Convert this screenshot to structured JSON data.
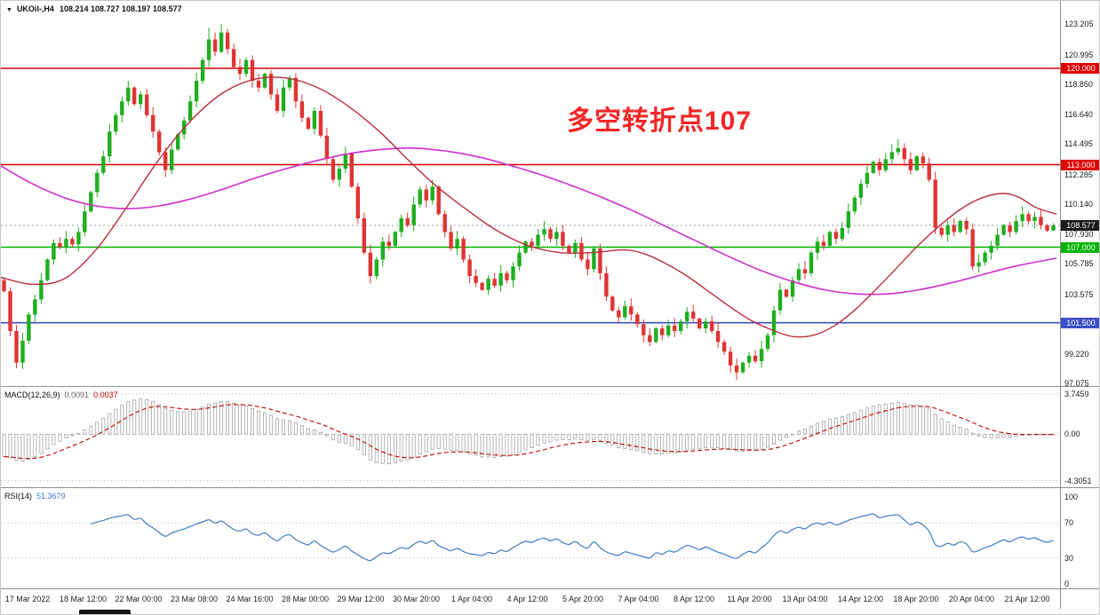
{
  "header": {
    "collapse_icon": "▼",
    "symbol_period": "UKOil-,H4",
    "ohlc_text": "108.214 108.727 108.197 108.577"
  },
  "annotation": {
    "text": "多空转折点107",
    "color": "#f42525"
  },
  "colors": {
    "candle_up": "#1fae1f",
    "candle_down": "#e03434",
    "ma_fast": "#b8303e",
    "ma_slow": "#cc2fcc",
    "macd_signal": "#c00000",
    "macd_bar": "#a6a6a6",
    "rsi_line": "#3b7cc4",
    "current_price_badge": "#1a1a1a",
    "grid_dotted": "#bbbbbb"
  },
  "chart_data": {
    "type": "candlestick",
    "symbol": "UKOil-",
    "timeframe": "H4",
    "ohlc_display": {
      "open": "108.214",
      "high": "108.727",
      "low": "108.197",
      "close": "108.577"
    },
    "ylim": [
      96.9,
      124.9
    ],
    "first_open": 104.6,
    "closes": [
      103.8,
      100.9,
      98.6,
      100.2,
      102.1,
      103.2,
      104.6,
      106.1,
      107.3,
      107.0,
      107.6,
      107.2,
      108.1,
      109.6,
      111.0,
      112.4,
      113.6,
      115.4,
      116.6,
      117.6,
      118.6,
      117.4,
      118.1,
      116.6,
      115.4,
      113.9,
      112.6,
      114.1,
      115.2,
      116.2,
      117.6,
      119.1,
      120.6,
      122.1,
      121.2,
      122.6,
      121.4,
      120.1,
      119.6,
      120.6,
      119.1,
      118.6,
      119.6,
      118.1,
      116.9,
      118.6,
      119.3,
      117.6,
      116.4,
      115.6,
      116.9,
      115.1,
      113.4,
      111.9,
      112.7,
      113.8,
      111.4,
      109.1,
      106.6,
      104.9,
      106.1,
      107.4,
      107.1,
      108.1,
      109.1,
      108.6,
      110.1,
      111.2,
      110.4,
      111.4,
      109.4,
      108.1,
      106.9,
      107.6,
      106.1,
      104.9,
      104.4,
      103.9,
      104.7,
      104.2,
      105.1,
      104.6,
      105.6,
      106.6,
      107.4,
      107.1,
      107.9,
      108.3,
      107.6,
      108.1,
      107.1,
      106.6,
      107.3,
      106.1,
      105.4,
      106.9,
      105.1,
      103.4,
      102.4,
      101.9,
      102.7,
      102.1,
      101.4,
      100.6,
      100.1,
      101.1,
      100.6,
      101.3,
      100.9,
      101.6,
      102.3,
      101.8,
      101.1,
      101.6,
      100.9,
      100.1,
      99.4,
      98.4,
      97.9,
      98.6,
      99.1,
      98.7,
      99.6,
      100.6,
      102.4,
      103.9,
      103.4,
      104.6,
      105.4,
      105.1,
      106.6,
      107.4,
      107.1,
      108.1,
      107.6,
      108.4,
      109.6,
      110.6,
      111.6,
      112.4,
      113.2,
      112.6,
      113.4,
      113.9,
      114.2,
      113.4,
      112.6,
      113.6,
      113.1,
      111.9,
      108.4,
      107.9,
      108.6,
      108.1,
      108.9,
      108.3,
      105.6,
      105.9,
      106.6,
      107.1,
      107.9,
      108.6,
      108.1,
      108.9,
      109.4,
      108.9,
      109.2,
      108.6,
      108.2,
      108.577
    ],
    "high_overrides": {
      "33": 122.95,
      "35": 123.21,
      "144": 114.85,
      "169": 108.73
    },
    "low_overrides": {
      "2": 98.2,
      "59": 104.35,
      "118": 97.35,
      "156": 105.32,
      "169": 108.2
    },
    "price_axis_labels": [
      "123.205",
      "120.995",
      "118.850",
      "116.640",
      "114.495",
      "112.285",
      "110.140",
      "107.930",
      "105.785",
      "103.575",
      "99.220",
      "97.075"
    ],
    "hlines": [
      {
        "price": 120.0,
        "label": "120.000",
        "color": "#e00000"
      },
      {
        "price": 113.0,
        "label": "113.000",
        "color": "#e00000"
      },
      {
        "price": 107.0,
        "label": "107.000",
        "color": "#00b400"
      },
      {
        "price": 101.5,
        "label": "101.500",
        "color": "#3c50c8"
      }
    ],
    "current_price": {
      "value": 108.577,
      "label": "108.577"
    },
    "ma_fast": {
      "points": [
        [
          0,
          104.8
        ],
        [
          0.03,
          104.3
        ],
        [
          0.06,
          104.7
        ],
        [
          0.09,
          106.8
        ],
        [
          0.12,
          110.0
        ],
        [
          0.15,
          113.4
        ],
        [
          0.18,
          116.2
        ],
        [
          0.21,
          118.2
        ],
        [
          0.24,
          119.2
        ],
        [
          0.27,
          119.3
        ],
        [
          0.3,
          118.6
        ],
        [
          0.33,
          117.2
        ],
        [
          0.36,
          115.3
        ],
        [
          0.385,
          113.4
        ],
        [
          0.41,
          111.6
        ],
        [
          0.44,
          109.8
        ],
        [
          0.47,
          108.2
        ],
        [
          0.5,
          107.1
        ],
        [
          0.53,
          106.6
        ],
        [
          0.56,
          106.6
        ],
        [
          0.59,
          106.8
        ],
        [
          0.61,
          106.5
        ],
        [
          0.63,
          105.8
        ],
        [
          0.65,
          104.9
        ],
        [
          0.67,
          103.8
        ],
        [
          0.69,
          102.7
        ],
        [
          0.71,
          101.7
        ],
        [
          0.73,
          101.0
        ],
        [
          0.75,
          100.5
        ],
        [
          0.77,
          100.6
        ],
        [
          0.79,
          101.3
        ],
        [
          0.81,
          102.5
        ],
        [
          0.83,
          104.0
        ],
        [
          0.85,
          105.6
        ],
        [
          0.87,
          107.2
        ],
        [
          0.89,
          108.6
        ],
        [
          0.91,
          109.8
        ],
        [
          0.93,
          110.6
        ],
        [
          0.95,
          110.9
        ],
        [
          0.965,
          110.6
        ],
        [
          0.98,
          109.9
        ],
        [
          1.0,
          109.4
        ]
      ]
    },
    "ma_slow": {
      "points": [
        [
          0,
          112.9
        ],
        [
          0.03,
          111.6
        ],
        [
          0.06,
          110.6
        ],
        [
          0.09,
          110.0
        ],
        [
          0.12,
          109.8
        ],
        [
          0.15,
          110.0
        ],
        [
          0.18,
          110.5
        ],
        [
          0.21,
          111.2
        ],
        [
          0.24,
          112.0
        ],
        [
          0.27,
          112.7
        ],
        [
          0.3,
          113.3
        ],
        [
          0.33,
          113.8
        ],
        [
          0.36,
          114.1
        ],
        [
          0.39,
          114.2
        ],
        [
          0.42,
          114.0
        ],
        [
          0.45,
          113.6
        ],
        [
          0.48,
          113.0
        ],
        [
          0.51,
          112.3
        ],
        [
          0.54,
          111.5
        ],
        [
          0.57,
          110.6
        ],
        [
          0.6,
          109.6
        ],
        [
          0.63,
          108.5
        ],
        [
          0.66,
          107.4
        ],
        [
          0.69,
          106.3
        ],
        [
          0.72,
          105.3
        ],
        [
          0.75,
          104.5
        ],
        [
          0.78,
          103.9
        ],
        [
          0.81,
          103.6
        ],
        [
          0.84,
          103.6
        ],
        [
          0.87,
          103.9
        ],
        [
          0.9,
          104.4
        ],
        [
          0.93,
          105.0
        ],
        [
          0.96,
          105.6
        ],
        [
          1.0,
          106.2
        ]
      ]
    },
    "macd": {
      "label": "MACD(12,26,9)",
      "value_main": "0.0091",
      "value_signal": "0.0037",
      "fast": 12,
      "slow": 26,
      "signal": 9,
      "ylim": [
        -4.9,
        4.3
      ],
      "level_labels": [
        "3.7459",
        "0.00",
        "-4.3051"
      ],
      "levels": [
        3.7459,
        0.0,
        -4.3051
      ]
    },
    "rsi": {
      "label": "RSI(14)",
      "value": "51.3679",
      "period": 14,
      "level_labels": [
        "100",
        "70",
        "30",
        "0"
      ],
      "levels": [
        100,
        70,
        30,
        0
      ],
      "levels_with_lines": [
        70,
        30
      ]
    },
    "time_labels": [
      "17 Mar 2022",
      "18 Mar 12:00",
      "22 Mar 00:00",
      "23 Mar 08:00",
      "24 Mar 16:00",
      "28 Mar 00:00",
      "29 Mar 12:00",
      "30 Mar 20:00",
      "1 Apr 04:00",
      "4 Apr 12:00",
      "5 Apr 20:00",
      "7 Apr 04:00",
      "8 Apr 12:00",
      "11 Apr 20:00",
      "13 Apr 04:00",
      "14 Apr 12:00",
      "18 Apr 20:00",
      "20 Apr 04:00",
      "21 Apr 12:00"
    ]
  }
}
